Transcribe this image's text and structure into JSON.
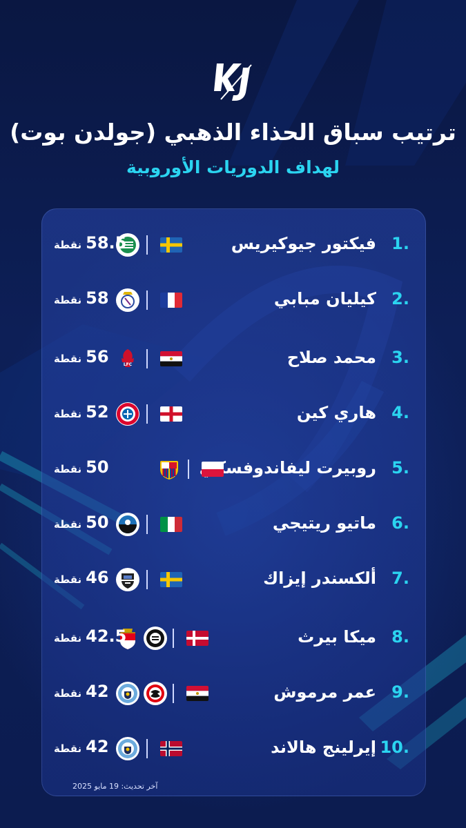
{
  "title": "ترتيب سباق الحذاء الذهبي (جولدن بوت)",
  "subtitle": "لهداف الدوريات الأوروبية",
  "points_unit": "نقطة",
  "last_updated": "آخر تحديث: 19 مايو 2025",
  "players": [
    {
      "rank": "1.",
      "name": "فيكتور جيوكيريس",
      "flag": "sweden",
      "clubs": [
        "sporting-cp"
      ],
      "points": "58.5"
    },
    {
      "rank": "2.",
      "name": "كيليان مبابي",
      "flag": "france",
      "clubs": [
        "real-madrid"
      ],
      "points": "58"
    },
    {
      "rank": "3.",
      "name": "محمد صلاح",
      "flag": "egypt",
      "clubs": [
        "liverpool"
      ],
      "points": "56"
    },
    {
      "rank": "4.",
      "name": "هاري كين",
      "flag": "england",
      "clubs": [
        "bayern-munich"
      ],
      "points": "52"
    },
    {
      "rank": "5.",
      "name": "روبيرت ليفاندوفسكي",
      "flag": "poland",
      "clubs": [
        "barcelona"
      ],
      "points": "50"
    },
    {
      "rank": "6.",
      "name": "ماتيو ريتيجي",
      "flag": "italy",
      "clubs": [
        "atalanta"
      ],
      "points": "50"
    },
    {
      "rank": "7.",
      "name": "ألكسندر إيزاك",
      "flag": "sweden",
      "clubs": [
        "newcastle"
      ],
      "points": "46"
    },
    {
      "rank": "8.",
      "name": "ميكا بيرث",
      "flag": "denmark",
      "clubs": [
        "sturm-graz",
        "monaco"
      ],
      "points": "42.5"
    },
    {
      "rank": "9.",
      "name": "عمر مرموش",
      "flag": "egypt",
      "clubs": [
        "eintracht-frankfurt",
        "manchester-city"
      ],
      "points": "42"
    },
    {
      "rank": "10.",
      "name": "إيرلينج هالاند",
      "flag": "norway",
      "clubs": [
        "manchester-city"
      ],
      "points": "42"
    }
  ]
}
